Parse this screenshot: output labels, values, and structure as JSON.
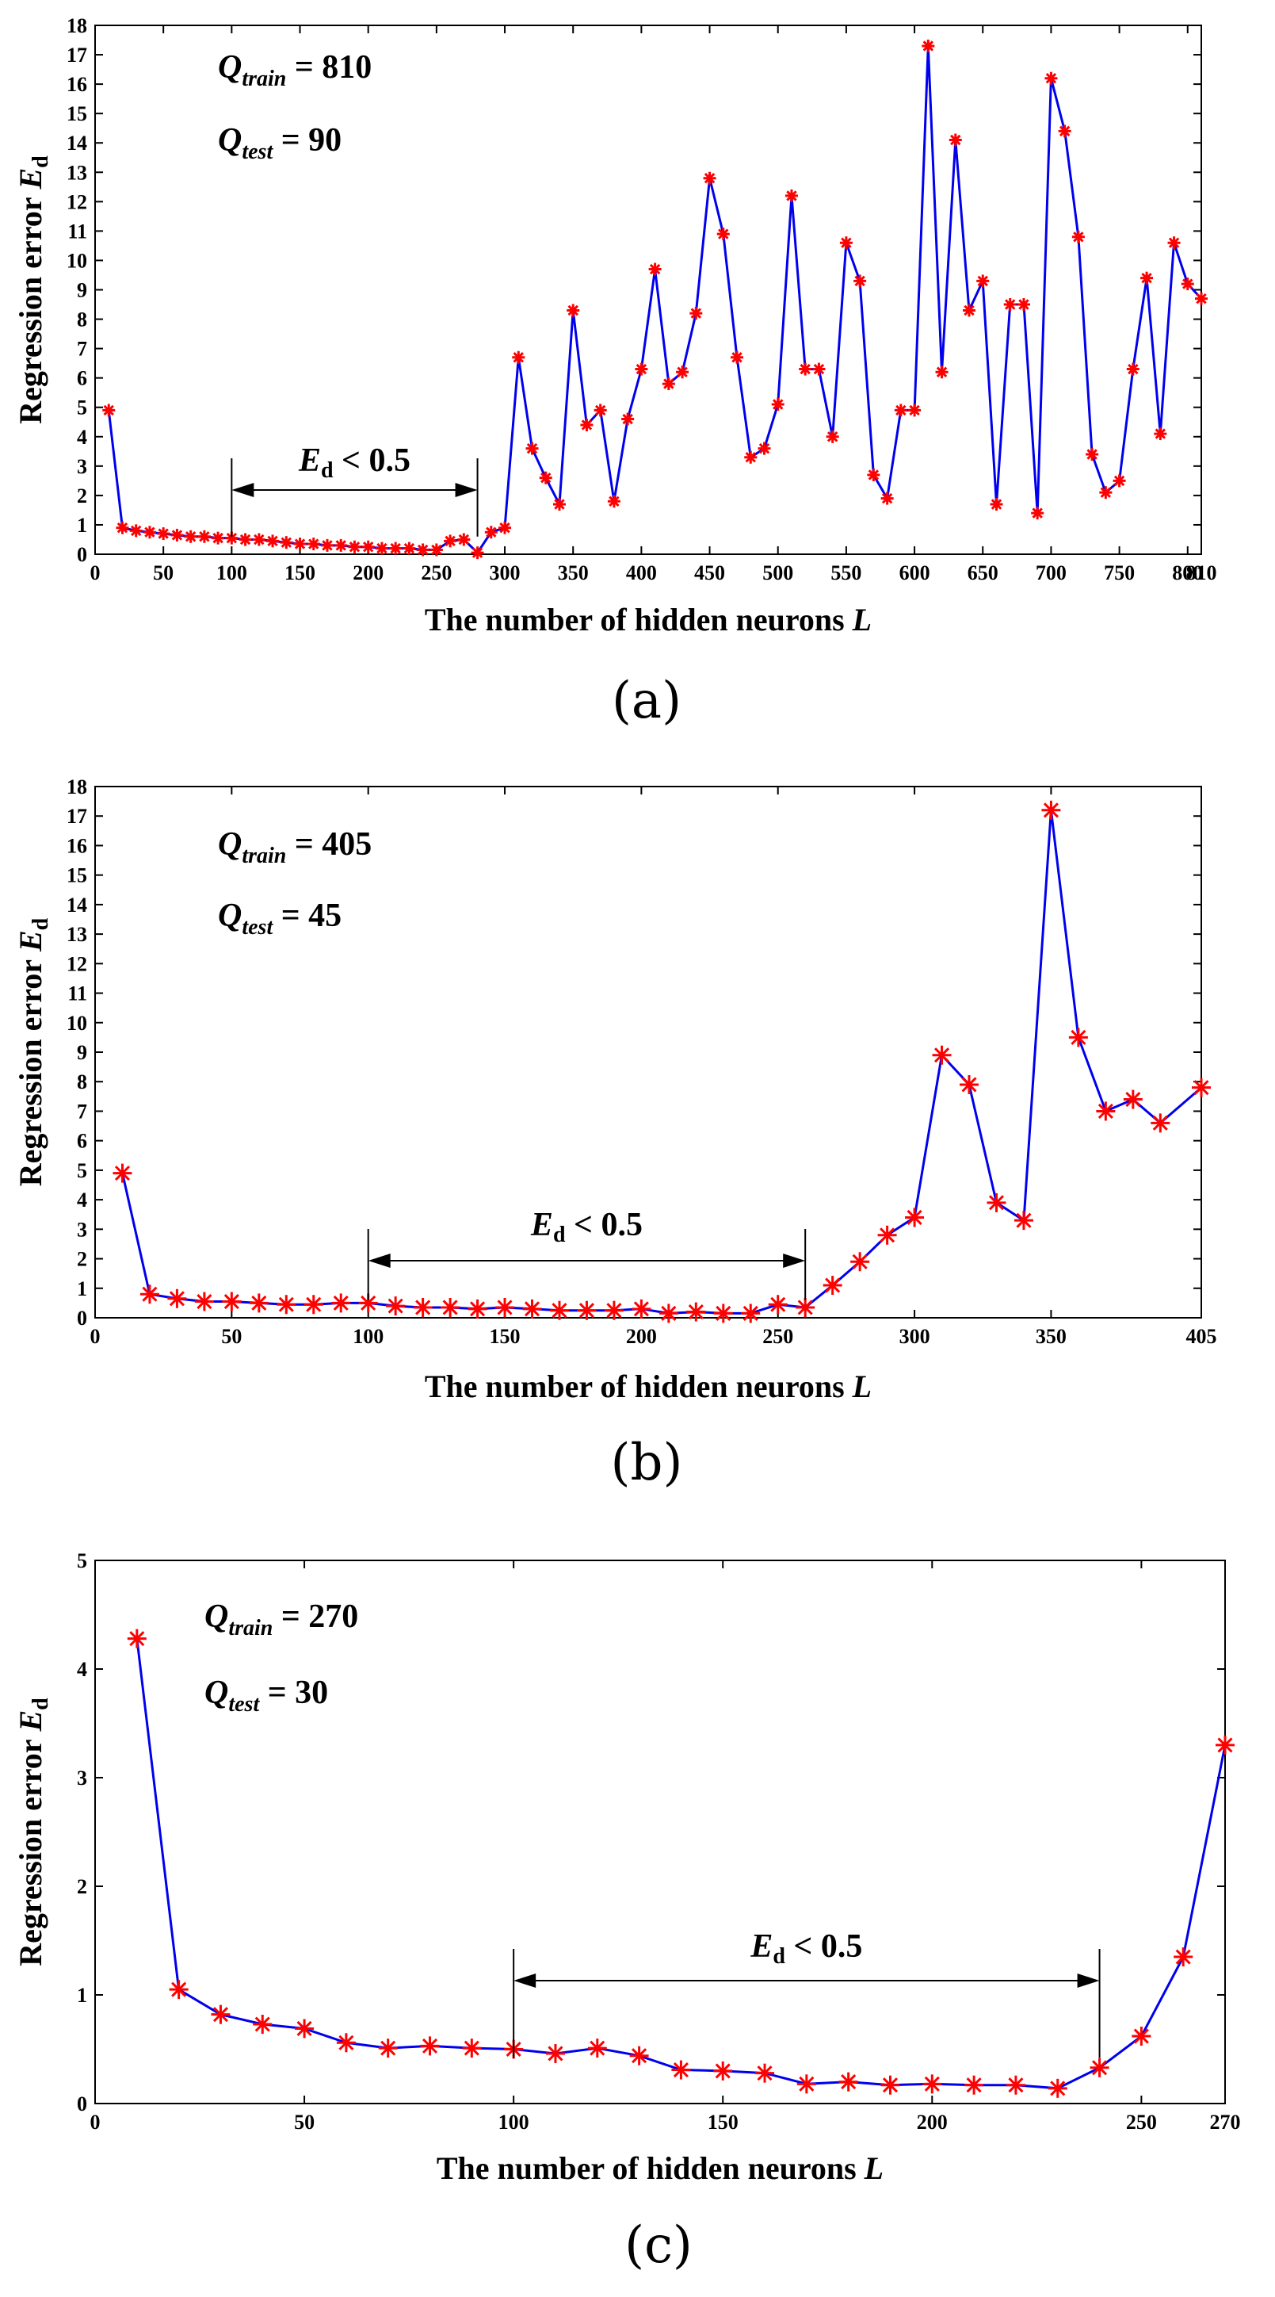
{
  "chart_data": [
    {
      "type": "line",
      "panel_label": "(a)",
      "xlabel": "The number of hidden neurons",
      "xlabel_symbol": "L",
      "ylabel": "Regression error",
      "ylabel_symbol": "E",
      "ylabel_subscript": "d",
      "xlim": [
        0,
        810
      ],
      "ylim": [
        0,
        18
      ],
      "xticks": [
        "0",
        "50",
        "100",
        "150",
        "200",
        "250",
        "300",
        "350",
        "400",
        "450",
        "500",
        "550",
        "600",
        "650",
        "700",
        "750",
        "800",
        "810"
      ],
      "xtick_values": [
        0,
        50,
        100,
        150,
        200,
        250,
        300,
        350,
        400,
        450,
        500,
        550,
        600,
        650,
        700,
        750,
        800,
        810
      ],
      "yticks": [
        0,
        1,
        2,
        3,
        4,
        5,
        6,
        7,
        8,
        9,
        10,
        11,
        12,
        13,
        14,
        15,
        16,
        17,
        18
      ],
      "ytick_labels": [
        "0",
        "1",
        "2",
        "3",
        "4",
        "5",
        "6",
        "7",
        "8",
        "9",
        "10",
        "11",
        "12",
        "13",
        "14",
        "15",
        "16",
        "17",
        "18"
      ],
      "annotation_train_sym": "Q",
      "annotation_train_sub": "train",
      "annotation_train_val": " = 810",
      "annotation_test_sym": "Q",
      "annotation_test_sub": "test",
      "annotation_test_val": " = 90",
      "range_annotation": {
        "start": 100,
        "end": 280,
        "label_sym": "E",
        "label_sub": "d",
        "label_rest": " < 0.5"
      },
      "line_color": "#0000ee",
      "marker_color": "#ff0000",
      "x": [
        10,
        20,
        30,
        40,
        50,
        60,
        70,
        80,
        90,
        100,
        110,
        120,
        130,
        140,
        150,
        160,
        170,
        180,
        190,
        200,
        210,
        220,
        230,
        240,
        250,
        260,
        270,
        280,
        290,
        300,
        310,
        320,
        330,
        340,
        350,
        360,
        370,
        380,
        390,
        400,
        410,
        420,
        430,
        440,
        450,
        460,
        470,
        480,
        490,
        500,
        510,
        520,
        530,
        540,
        550,
        560,
        570,
        580,
        590,
        600,
        610,
        620,
        630,
        640,
        650,
        660,
        670,
        680,
        690,
        700,
        710,
        720,
        730,
        740,
        750,
        760,
        770,
        780,
        790,
        800,
        810
      ],
      "y": [
        4.9,
        0.9,
        0.8,
        0.75,
        0.7,
        0.65,
        0.6,
        0.6,
        0.55,
        0.55,
        0.5,
        0.5,
        0.45,
        0.4,
        0.35,
        0.35,
        0.3,
        0.3,
        0.25,
        0.25,
        0.2,
        0.2,
        0.2,
        0.15,
        0.15,
        0.45,
        0.5,
        0.05,
        0.75,
        0.9,
        6.7,
        3.6,
        2.6,
        1.7,
        8.3,
        4.4,
        4.9,
        1.8,
        4.6,
        6.3,
        9.7,
        5.8,
        6.2,
        8.2,
        12.8,
        10.9,
        6.7,
        3.3,
        3.6,
        5.1,
        12.2,
        6.3,
        6.3,
        4.0,
        10.6,
        9.3,
        2.7,
        1.9,
        4.9,
        4.9,
        17.3,
        6.2,
        14.1,
        8.3,
        9.3,
        1.7,
        8.5,
        8.5,
        1.4,
        16.2,
        14.4,
        10.8,
        3.4,
        2.1,
        2.5,
        6.3,
        9.4,
        4.1,
        10.6,
        9.2,
        8.7
      ]
    },
    {
      "type": "line",
      "panel_label": "(b)",
      "xlabel": "The number of hidden neurons",
      "xlabel_symbol": "L",
      "ylabel": "Regression error",
      "ylabel_symbol": "E",
      "ylabel_subscript": "d",
      "xlim": [
        0,
        405
      ],
      "ylim": [
        0,
        18
      ],
      "xticks": [
        "0",
        "50",
        "100",
        "150",
        "200",
        "250",
        "300",
        "350",
        "405"
      ],
      "xtick_values": [
        0,
        50,
        100,
        150,
        200,
        250,
        300,
        350,
        405
      ],
      "yticks": [
        0,
        1,
        2,
        3,
        4,
        5,
        6,
        7,
        8,
        9,
        10,
        11,
        12,
        13,
        14,
        15,
        16,
        17,
        18
      ],
      "ytick_labels": [
        "0",
        "1",
        "2",
        "3",
        "4",
        "5",
        "6",
        "7",
        "8",
        "9",
        "10",
        "11",
        "12",
        "13",
        "14",
        "15",
        "16",
        "17",
        "18"
      ],
      "annotation_train_sym": "Q",
      "annotation_train_sub": "train",
      "annotation_train_val": " = 405",
      "annotation_test_sym": "Q",
      "annotation_test_sub": "test",
      "annotation_test_val": " = 45",
      "range_annotation": {
        "start": 100,
        "end": 260,
        "label_sym": "E",
        "label_sub": "d",
        "label_rest": " < 0.5"
      },
      "line_color": "#0000ee",
      "marker_color": "#ff0000",
      "x": [
        10,
        20,
        30,
        40,
        50,
        60,
        70,
        80,
        90,
        100,
        110,
        120,
        130,
        140,
        150,
        160,
        170,
        180,
        190,
        200,
        210,
        220,
        230,
        240,
        250,
        260,
        270,
        280,
        290,
        300,
        310,
        320,
        330,
        340,
        350,
        360,
        370,
        380,
        390,
        405
      ],
      "y": [
        4.9,
        0.8,
        0.65,
        0.55,
        0.55,
        0.5,
        0.45,
        0.45,
        0.5,
        0.5,
        0.4,
        0.35,
        0.35,
        0.3,
        0.35,
        0.3,
        0.25,
        0.25,
        0.25,
        0.3,
        0.15,
        0.2,
        0.15,
        0.15,
        0.45,
        0.35,
        1.1,
        1.9,
        2.8,
        3.4,
        8.9,
        7.9,
        3.9,
        3.3,
        17.2,
        9.5,
        7.0,
        7.4,
        6.6,
        7.8
      ]
    },
    {
      "type": "line",
      "panel_label": "(c)",
      "xlabel": "The number of hidden neurons",
      "xlabel_symbol": "L",
      "ylabel": "Regression error",
      "ylabel_symbol": "E",
      "ylabel_subscript": "d",
      "xlim": [
        0,
        270
      ],
      "ylim": [
        0,
        5
      ],
      "xticks": [
        "0",
        "50",
        "100",
        "150",
        "200",
        "250",
        "270"
      ],
      "xtick_values": [
        0,
        50,
        100,
        150,
        200,
        250,
        270
      ],
      "yticks": [
        0,
        1,
        2,
        3,
        4,
        5
      ],
      "ytick_labels": [
        "0",
        "1",
        "2",
        "3",
        "4",
        "5"
      ],
      "annotation_train_sym": "Q",
      "annotation_train_sub": "train",
      "annotation_train_val": " = 270",
      "annotation_test_sym": "Q",
      "annotation_test_sub": "test",
      "annotation_test_val": " = 30",
      "range_annotation": {
        "start": 100,
        "end": 240,
        "label_sym": "E",
        "label_sub": "d",
        "label_rest": " < 0.5"
      },
      "line_color": "#0000ee",
      "marker_color": "#ff0000",
      "x": [
        10,
        20,
        30,
        40,
        50,
        60,
        70,
        80,
        90,
        100,
        110,
        120,
        130,
        140,
        150,
        160,
        170,
        180,
        190,
        200,
        210,
        220,
        230,
        240,
        250,
        260,
        270
      ],
      "y": [
        4.28,
        1.05,
        0.82,
        0.73,
        0.69,
        0.56,
        0.51,
        0.53,
        0.51,
        0.5,
        0.46,
        0.51,
        0.44,
        0.31,
        0.3,
        0.28,
        0.18,
        0.2,
        0.17,
        0.18,
        0.17,
        0.17,
        0.14,
        0.33,
        0.62,
        1.35,
        3.3
      ]
    }
  ]
}
